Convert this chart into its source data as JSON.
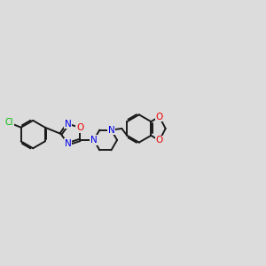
{
  "background_color": "#dcdcdc",
  "bond_color": "#1a1a1a",
  "bond_width": 1.4,
  "atom_colors": {
    "N": "#0000ee",
    "O": "#ee0000",
    "Cl": "#00bb00"
  },
  "font_size": 7.5,
  "figsize": [
    3.0,
    3.0
  ],
  "dpi": 100
}
